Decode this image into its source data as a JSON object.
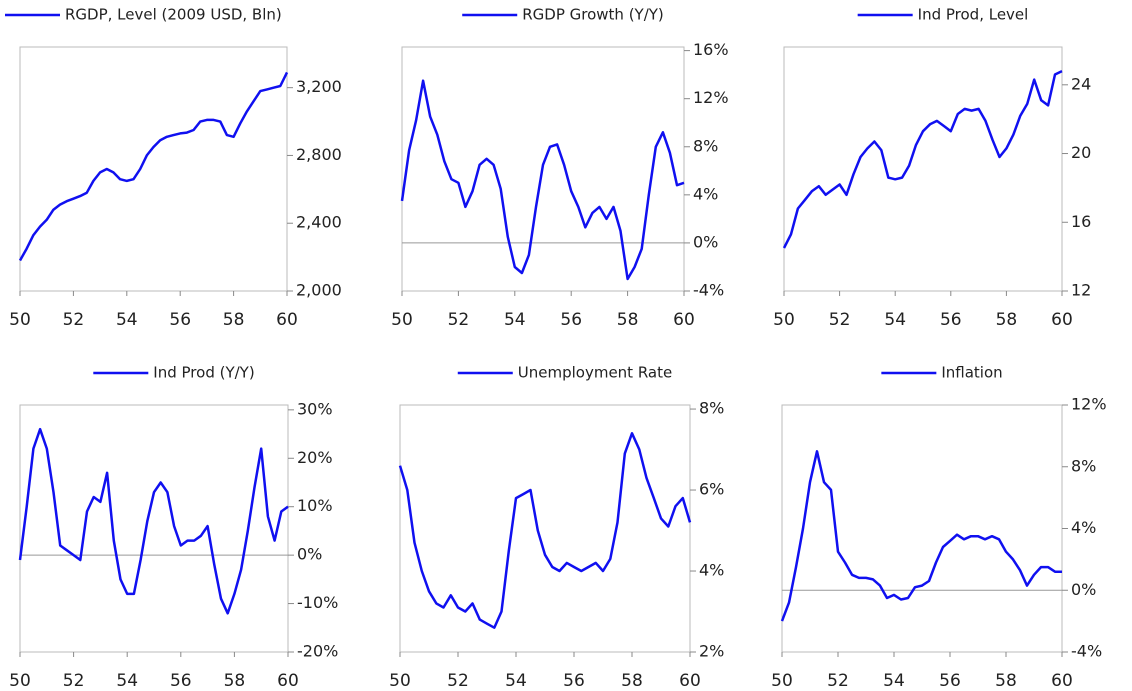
{
  "chart_data": [
    {
      "type": "line",
      "series": [
        {
          "name": "RGDP, Level (2009 USD, Bln)",
          "color": "#1010f0",
          "values": [
            2180,
            2250,
            2330,
            2380,
            2420,
            2480,
            2510,
            2530,
            2545,
            2560,
            2580,
            2650,
            2700,
            2720,
            2700,
            2660,
            2650,
            2660,
            2720,
            2800,
            2850,
            2890,
            2910,
            2920,
            2930,
            2935,
            2950,
            3000,
            3010,
            3010,
            3000,
            2920,
            2910,
            2990,
            3060,
            3120,
            3180,
            3190,
            3200,
            3210,
            3290
          ]
        }
      ],
      "x": [
        50,
        50.25,
        50.5,
        50.75,
        51,
        51.25,
        51.5,
        51.75,
        52,
        52.25,
        52.5,
        52.75,
        53,
        53.25,
        53.5,
        53.75,
        54,
        54.25,
        54.5,
        54.75,
        55,
        55.25,
        55.5,
        55.75,
        56,
        56.25,
        56.5,
        56.75,
        57,
        57.25,
        57.5,
        57.75,
        58,
        58.25,
        58.5,
        58.75,
        59,
        59.25,
        59.5,
        59.75,
        60
      ],
      "xlim": [
        50,
        60
      ],
      "xticks": [
        50,
        52,
        54,
        56,
        58,
        60
      ],
      "ylim": [
        2000,
        3440
      ],
      "yticks": [
        {
          "value": 2000,
          "label": "2,000"
        },
        {
          "value": 2400,
          "label": "2,400"
        },
        {
          "value": 2800,
          "label": "2,800"
        },
        {
          "value": 3200,
          "label": "3,200"
        }
      ]
    },
    {
      "type": "line",
      "series": [
        {
          "name": "RGDP Growth (Y/Y)",
          "color": "#1010f0",
          "values": [
            3.5,
            7.7,
            10.2,
            13.5,
            10.5,
            9,
            6.8,
            5.3,
            5,
            3,
            4.3,
            6.5,
            7,
            6.5,
            4.5,
            0.5,
            -2,
            -2.5,
            -1,
            3,
            6.5,
            8,
            8.2,
            6.5,
            4.3,
            3,
            1.3,
            2.5,
            3,
            2,
            3,
            1,
            -3,
            -2,
            -0.5,
            4,
            8,
            9.2,
            7.5,
            4.8,
            5
          ]
        }
      ],
      "x": [
        50,
        50.25,
        50.5,
        50.75,
        51,
        51.25,
        51.5,
        51.75,
        52,
        52.25,
        52.5,
        52.75,
        53,
        53.25,
        53.5,
        53.75,
        54,
        54.25,
        54.5,
        54.75,
        55,
        55.25,
        55.5,
        55.75,
        56,
        56.25,
        56.5,
        56.75,
        57,
        57.25,
        57.5,
        57.75,
        58,
        58.25,
        58.5,
        58.75,
        59,
        59.25,
        59.5,
        59.75,
        60
      ],
      "xlim": [
        50,
        60
      ],
      "xticks": [
        50,
        52,
        54,
        56,
        58,
        60
      ],
      "ylim": [
        -4,
        16.3
      ],
      "yticks": [
        {
          "value": -4,
          "label": "-4%"
        },
        {
          "value": 0,
          "label": "0%"
        },
        {
          "value": 4,
          "label": "4%"
        },
        {
          "value": 8,
          "label": "8%"
        },
        {
          "value": 12,
          "label": "12%"
        },
        {
          "value": 16,
          "label": "16%"
        }
      ]
    },
    {
      "type": "line",
      "series": [
        {
          "name": "Ind Prod, Level",
          "color": "#1010f0",
          "values": [
            14.5,
            15.3,
            16.8,
            17.3,
            17.8,
            18.1,
            17.6,
            17.9,
            18.2,
            17.6,
            18.8,
            19.8,
            20.3,
            20.7,
            20.2,
            18.6,
            18.5,
            18.6,
            19.3,
            20.5,
            21.3,
            21.7,
            21.9,
            21.6,
            21.3,
            22.3,
            22.6,
            22.5,
            22.6,
            21.9,
            20.8,
            19.8,
            20.3,
            21.1,
            22.2,
            22.9,
            24.3,
            23.1,
            22.8,
            24.6,
            24.8
          ]
        }
      ],
      "x": [
        50,
        50.25,
        50.5,
        50.75,
        51,
        51.25,
        51.5,
        51.75,
        52,
        52.25,
        52.5,
        52.75,
        53,
        53.25,
        53.5,
        53.75,
        54,
        54.25,
        54.5,
        54.75,
        55,
        55.25,
        55.5,
        55.75,
        56,
        56.25,
        56.5,
        56.75,
        57,
        57.25,
        57.5,
        57.75,
        58,
        58.25,
        58.5,
        58.75,
        59,
        59.25,
        59.5,
        59.75,
        60
      ],
      "xlim": [
        50,
        60
      ],
      "xticks": [
        50,
        52,
        54,
        56,
        58,
        60
      ],
      "ylim": [
        12,
        26.2
      ],
      "yticks": [
        12,
        16,
        20,
        24
      ]
    },
    {
      "type": "line",
      "series": [
        {
          "name": "Ind Prod (Y/Y)",
          "color": "#1010f0",
          "values": [
            -1,
            10,
            22,
            26,
            22,
            13,
            2,
            1,
            0,
            -1,
            9,
            12,
            11,
            17,
            3,
            -5,
            -8,
            -8,
            -1,
            7,
            13,
            15,
            13,
            6,
            2,
            3,
            3,
            4,
            6,
            -2,
            -9,
            -12,
            -8,
            -3,
            5,
            14,
            22,
            8,
            3,
            9,
            10
          ]
        }
      ],
      "x": [
        50,
        50.25,
        50.5,
        50.75,
        51,
        51.25,
        51.5,
        51.75,
        52,
        52.25,
        52.5,
        52.75,
        53,
        53.25,
        53.5,
        53.75,
        54,
        54.25,
        54.5,
        54.75,
        55,
        55.25,
        55.5,
        55.75,
        56,
        56.25,
        56.5,
        56.75,
        57,
        57.25,
        57.5,
        57.75,
        58,
        58.25,
        58.5,
        58.75,
        59,
        59.25,
        59.5,
        59.75,
        60
      ],
      "xlim": [
        50,
        60
      ],
      "xticks": [
        50,
        52,
        54,
        56,
        58,
        60
      ],
      "ylim": [
        -20,
        31
      ],
      "yticks": [
        {
          "value": -20,
          "label": "-20%"
        },
        {
          "value": -10,
          "label": "-10%"
        },
        {
          "value": 0,
          "label": "0%"
        },
        {
          "value": 10,
          "label": "10%"
        },
        {
          "value": 20,
          "label": "20%"
        },
        {
          "value": 30,
          "label": "30%"
        }
      ]
    },
    {
      "type": "line",
      "series": [
        {
          "name": "Unemployment Rate",
          "color": "#1010f0",
          "values": [
            6.6,
            6.0,
            4.7,
            4.0,
            3.5,
            3.2,
            3.1,
            3.4,
            3.1,
            3.0,
            3.2,
            2.8,
            2.7,
            2.6,
            3.0,
            4.5,
            5.8,
            5.9,
            6.0,
            5.0,
            4.4,
            4.1,
            4.0,
            4.2,
            4.1,
            4.0,
            4.1,
            4.2,
            4.0,
            4.3,
            5.2,
            6.9,
            7.4,
            7.0,
            6.3,
            5.8,
            5.3,
            5.1,
            5.6,
            5.8,
            5.2
          ]
        }
      ],
      "x": [
        50,
        50.25,
        50.5,
        50.75,
        51,
        51.25,
        51.5,
        51.75,
        52,
        52.25,
        52.5,
        52.75,
        53,
        53.25,
        53.5,
        53.75,
        54,
        54.25,
        54.5,
        54.75,
        55,
        55.25,
        55.5,
        55.75,
        56,
        56.25,
        56.5,
        56.75,
        57,
        57.25,
        57.5,
        57.75,
        58,
        58.25,
        58.5,
        58.75,
        59,
        59.25,
        59.5,
        59.75,
        60
      ],
      "xlim": [
        50,
        60
      ],
      "xticks": [
        50,
        52,
        54,
        56,
        58,
        60
      ],
      "ylim": [
        2,
        8.1
      ],
      "yticks": [
        {
          "value": 2,
          "label": "2%"
        },
        {
          "value": 4,
          "label": "4%"
        },
        {
          "value": 6,
          "label": "6%"
        },
        {
          "value": 8,
          "label": "8%"
        }
      ]
    },
    {
      "type": "line",
      "series": [
        {
          "name": "Inflation",
          "color": "#1010f0",
          "values": [
            -2,
            -0.8,
            1.5,
            4,
            7,
            9,
            7,
            6.5,
            2.5,
            1.8,
            1,
            0.8,
            0.8,
            0.7,
            0.3,
            -0.5,
            -0.3,
            -0.6,
            -0.5,
            0.2,
            0.3,
            0.6,
            1.8,
            2.8,
            3.2,
            3.6,
            3.3,
            3.5,
            3.5,
            3.3,
            3.5,
            3.3,
            2.5,
            2.0,
            1.3,
            0.3,
            1.0,
            1.5,
            1.5,
            1.2,
            1.2
          ]
        }
      ],
      "x": [
        50,
        50.25,
        50.5,
        50.75,
        51,
        51.25,
        51.5,
        51.75,
        52,
        52.25,
        52.5,
        52.75,
        53,
        53.25,
        53.5,
        53.75,
        54,
        54.25,
        54.5,
        54.75,
        55,
        55.25,
        55.5,
        55.75,
        56,
        56.25,
        56.5,
        56.75,
        57,
        57.25,
        57.5,
        57.75,
        58,
        58.25,
        58.5,
        58.75,
        59,
        59.25,
        59.5,
        59.75,
        60
      ],
      "xlim": [
        50,
        60
      ],
      "xticks": [
        50,
        52,
        54,
        56,
        58,
        60
      ],
      "ylim": [
        -4,
        12
      ],
      "yticks": [
        {
          "value": -4,
          "label": "-4%"
        },
        {
          "value": 0,
          "label": "0%"
        },
        {
          "value": 4,
          "label": "4%"
        },
        {
          "value": 8,
          "label": "8%"
        },
        {
          "value": 12,
          "label": "12%"
        }
      ]
    }
  ]
}
